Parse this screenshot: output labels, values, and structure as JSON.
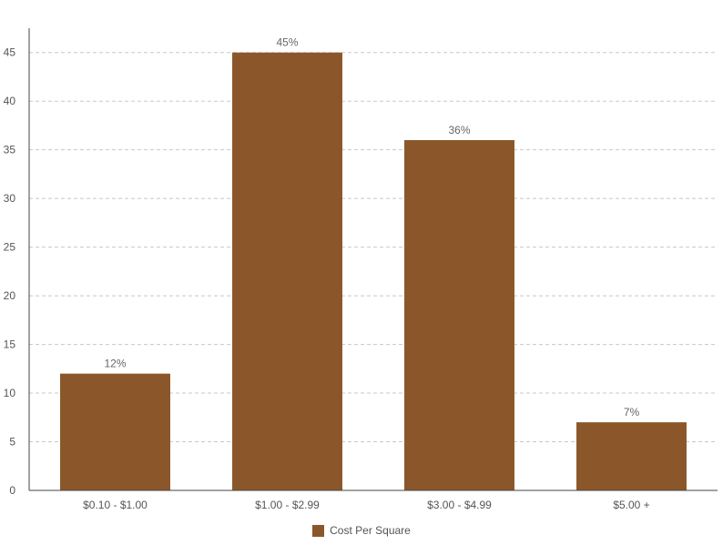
{
  "chart_data": {
    "type": "bar",
    "categories": [
      "$0.10 - $1.00",
      "$1.00 - $2.99",
      "$3.00 - $4.99",
      "$5.00 +"
    ],
    "series": [
      {
        "name": "Cost Per Square",
        "values": [
          12,
          45,
          36,
          7
        ],
        "data_labels": [
          "12%",
          "45%",
          "36%",
          "7%"
        ],
        "color": "#8B572A"
      }
    ],
    "ylim": [
      0,
      47.5
    ],
    "yticks": [
      0,
      5,
      10,
      15,
      20,
      25,
      30,
      35,
      40,
      45
    ],
    "grid": true,
    "legend_position": "bottom-center"
  }
}
